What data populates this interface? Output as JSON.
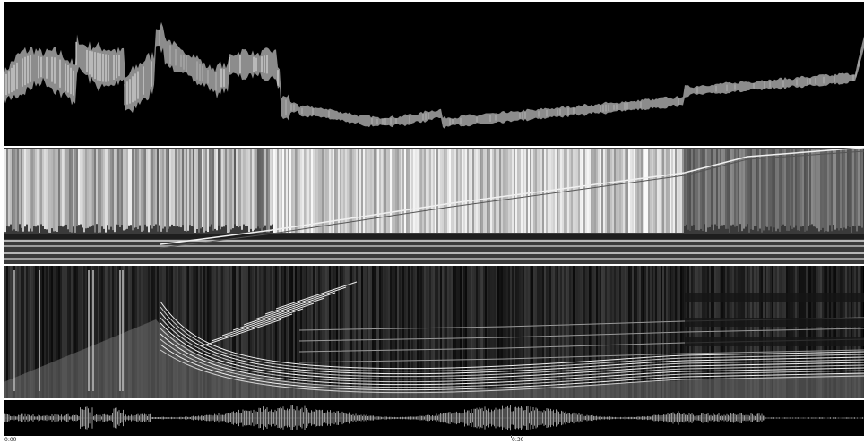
{
  "timeline": {
    "labels": [
      "0:00",
      "0:30"
    ]
  },
  "panels": {
    "envelope": {
      "name": "envelope-panel"
    },
    "chroma": {
      "name": "chroma-panel"
    },
    "spectrogram": {
      "name": "spectrogram-panel"
    },
    "waveform": {
      "name": "waveform-panel"
    }
  },
  "colors": {
    "background": "#000000",
    "foreground": "#d8d8d8",
    "mid": "#7a7a7a",
    "page": "#ffffff"
  }
}
